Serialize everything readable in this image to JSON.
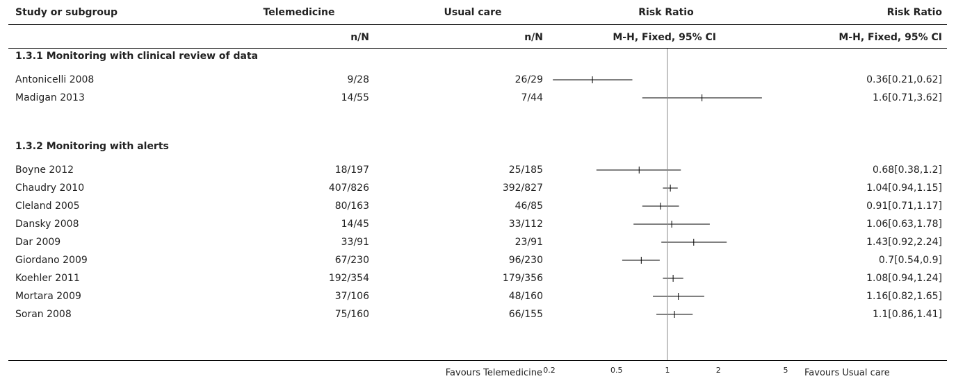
{
  "header": {
    "col_study": "Study or subgroup",
    "col_tele": "Telemedicine",
    "col_usual": "Usual care",
    "col_rr_num": "Risk Ratio",
    "col_rr_graph": "Risk Ratio",
    "sub_tele": "n/N",
    "sub_usual": "n/N",
    "sub_rr_num": "M-H, Fixed, 95% CI",
    "sub_rr_graph": "M-H, Fixed, 95% CI"
  },
  "footer": {
    "favours_left": "Favours Telemedicine",
    "favours_right": "Favours Usual care"
  },
  "chart_data": {
    "type": "forest",
    "x_scale": "log",
    "xlim": [
      0.2,
      5
    ],
    "ticks": [
      "0.2",
      "0.5",
      "1",
      "2",
      "5"
    ],
    "groups": [
      {
        "name": "1.3.1 Monitoring with clinical review of data",
        "studies": [
          {
            "study": "Antonicelli 2008",
            "tele": "9/28",
            "usual": "26/29",
            "rr_text": "0.36[0.21,0.62]",
            "rr": 0.36,
            "lo": 0.21,
            "hi": 0.62
          },
          {
            "study": "Madigan 2013",
            "tele": "14/55",
            "usual": "7/44",
            "rr_text": "1.6[0.71,3.62]",
            "rr": 1.6,
            "lo": 0.71,
            "hi": 3.62
          }
        ]
      },
      {
        "name": "1.3.2 Monitoring with alerts",
        "studies": [
          {
            "study": "Boyne 2012",
            "tele": "18/197",
            "usual": "25/185",
            "rr_text": "0.68[0.38,1.2]",
            "rr": 0.68,
            "lo": 0.38,
            "hi": 1.2
          },
          {
            "study": "Chaudry 2010",
            "tele": "407/826",
            "usual": "392/827",
            "rr_text": "1.04[0.94,1.15]",
            "rr": 1.04,
            "lo": 0.94,
            "hi": 1.15
          },
          {
            "study": "Cleland 2005",
            "tele": "80/163",
            "usual": "46/85",
            "rr_text": "0.91[0.71,1.17]",
            "rr": 0.91,
            "lo": 0.71,
            "hi": 1.17
          },
          {
            "study": "Dansky 2008",
            "tele": "14/45",
            "usual": "33/112",
            "rr_text": "1.06[0.63,1.78]",
            "rr": 1.06,
            "lo": 0.63,
            "hi": 1.78
          },
          {
            "study": "Dar 2009",
            "tele": "33/91",
            "usual": "23/91",
            "rr_text": "1.43[0.92,2.24]",
            "rr": 1.43,
            "lo": 0.92,
            "hi": 2.24
          },
          {
            "study": "Giordano 2009",
            "tele": "67/230",
            "usual": "96/230",
            "rr_text": "0.7[0.54,0.9]",
            "rr": 0.7,
            "lo": 0.54,
            "hi": 0.9
          },
          {
            "study": "Koehler 2011",
            "tele": "192/354",
            "usual": "179/356",
            "rr_text": "1.08[0.94,1.24]",
            "rr": 1.08,
            "lo": 0.94,
            "hi": 1.24
          },
          {
            "study": "Mortara 2009",
            "tele": "37/106",
            "usual": "48/160",
            "rr_text": "1.16[0.82,1.65]",
            "rr": 1.16,
            "lo": 0.82,
            "hi": 1.65
          },
          {
            "study": "Soran 2008",
            "tele": "75/160",
            "usual": "66/155",
            "rr_text": "1.1[0.86,1.41]",
            "rr": 1.1,
            "lo": 0.86,
            "hi": 1.41
          }
        ]
      }
    ]
  }
}
